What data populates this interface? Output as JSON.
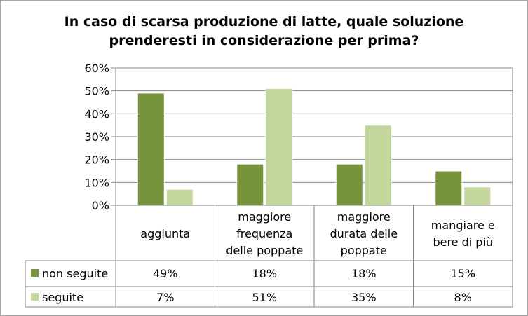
{
  "chart_data": {
    "type": "bar",
    "title_lines": [
      "In caso di scarsa produzione  di latte, quale soluzione",
      "prenderesti in considerazione per prima?"
    ],
    "categories": [
      [
        "aggiunta"
      ],
      [
        "maggiore",
        "frequenza",
        "delle poppate"
      ],
      [
        "maggiore",
        "durata delle",
        "poppate"
      ],
      [
        "mangiare e",
        "bere di più"
      ]
    ],
    "series": [
      {
        "name": "non seguite",
        "color": "#77933c",
        "values": [
          49,
          18,
          18,
          15
        ],
        "labels": [
          "49%",
          "18%",
          "18%",
          "15%"
        ]
      },
      {
        "name": "seguite",
        "color": "#c3d69b",
        "values": [
          7,
          51,
          35,
          8
        ],
        "labels": [
          "7%",
          "51%",
          "35%",
          "8%"
        ]
      }
    ],
    "ylim": [
      0,
      60
    ],
    "yticks": [
      "0%",
      "10%",
      "20%",
      "30%",
      "40%",
      "50%",
      "60%"
    ],
    "grid": true,
    "legend": "data-table"
  }
}
